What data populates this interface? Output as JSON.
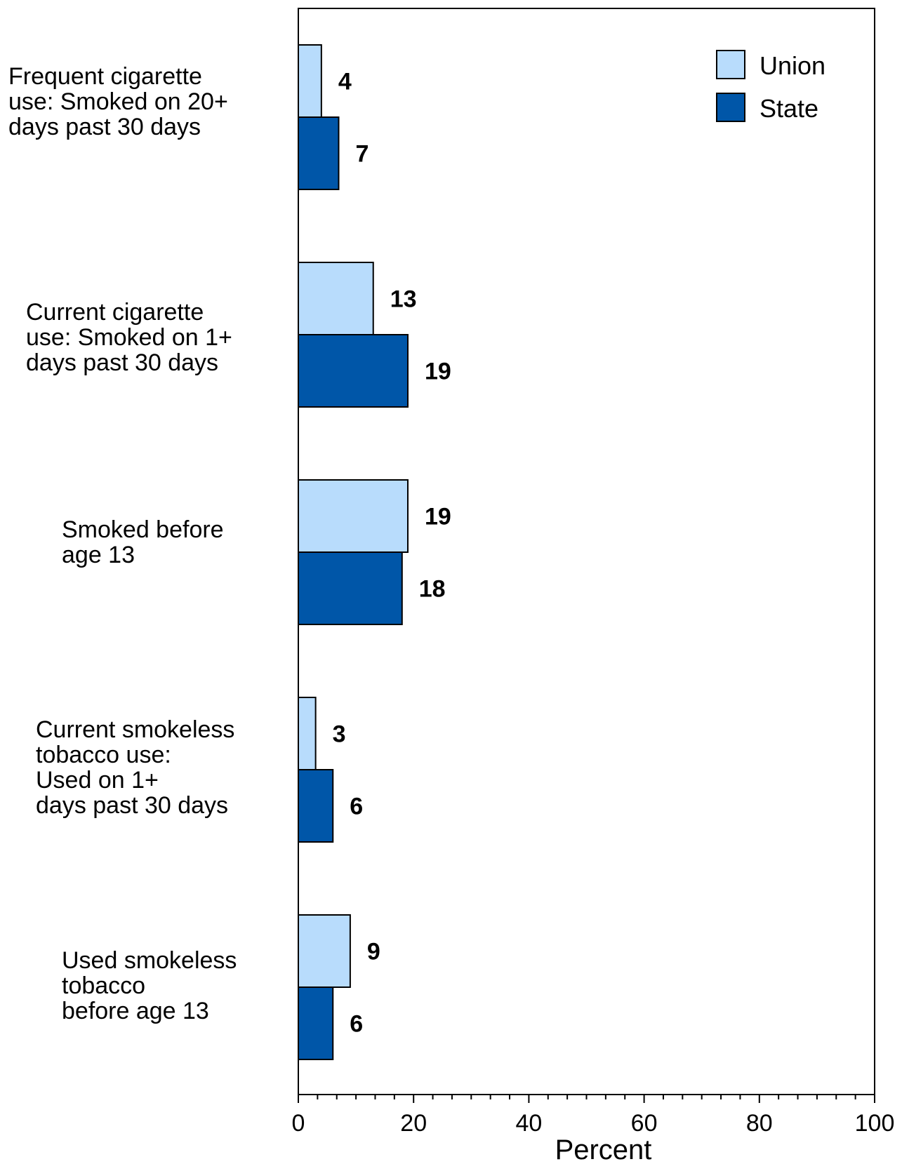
{
  "chart_data": {
    "type": "bar",
    "orientation": "horizontal",
    "categories": [
      [
        "Frequent cigarette",
        "use: Smoked on 20+",
        "days past 30 days"
      ],
      [
        "Current cigarette",
        "use: Smoked on 1+",
        "days past 30 days"
      ],
      [
        "Smoked before",
        "age 13"
      ],
      [
        "Current smokeless",
        "tobacco use:",
        "Used on 1+",
        "days past 30 days"
      ],
      [
        "Used smokeless",
        "tobacco",
        "before age 13"
      ]
    ],
    "series": [
      {
        "name": "Union",
        "color": "#b8dcfc",
        "values": [
          4,
          13,
          19,
          3,
          9
        ]
      },
      {
        "name": "State",
        "color": "#0056a8",
        "values": [
          7,
          19,
          18,
          6,
          6
        ]
      }
    ],
    "xlabel": "Percent",
    "xlim": [
      0,
      100
    ],
    "xticks": [
      "0",
      "20",
      "40",
      "60",
      "80",
      "100"
    ],
    "legend_position": "top-right",
    "grid": false
  }
}
